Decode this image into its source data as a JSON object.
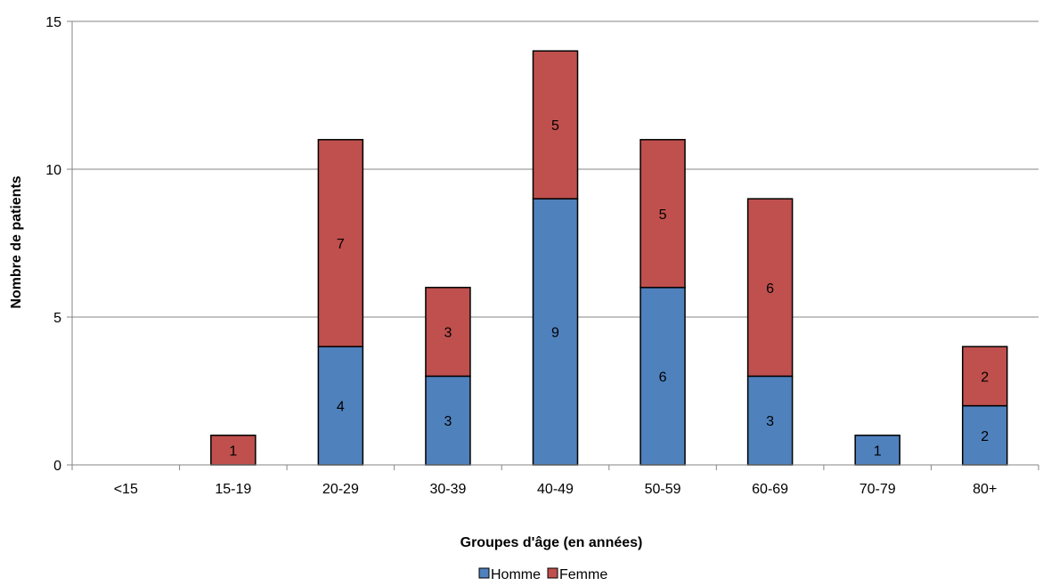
{
  "chart_data": {
    "type": "bar",
    "stacked": true,
    "title": "",
    "xlabel": "Groupes d'âge (en années)",
    "ylabel": "Nombre de patients",
    "categories": [
      "<15",
      "15-19",
      "20-29",
      "30-39",
      "40-49",
      "50-59",
      "60-69",
      "70-79",
      "80+"
    ],
    "series": [
      {
        "name": "Homme",
        "color": "#4F81BD",
        "values": [
          0,
          0,
          4,
          3,
          9,
          6,
          3,
          1,
          2
        ]
      },
      {
        "name": "Femme",
        "color": "#C0504D",
        "values": [
          0,
          1,
          7,
          3,
          5,
          5,
          6,
          0,
          2
        ]
      }
    ],
    "ylim": [
      0,
      15
    ],
    "yticks": [
      0,
      5,
      10,
      15
    ],
    "grid": true,
    "legend_position": "bottom"
  }
}
